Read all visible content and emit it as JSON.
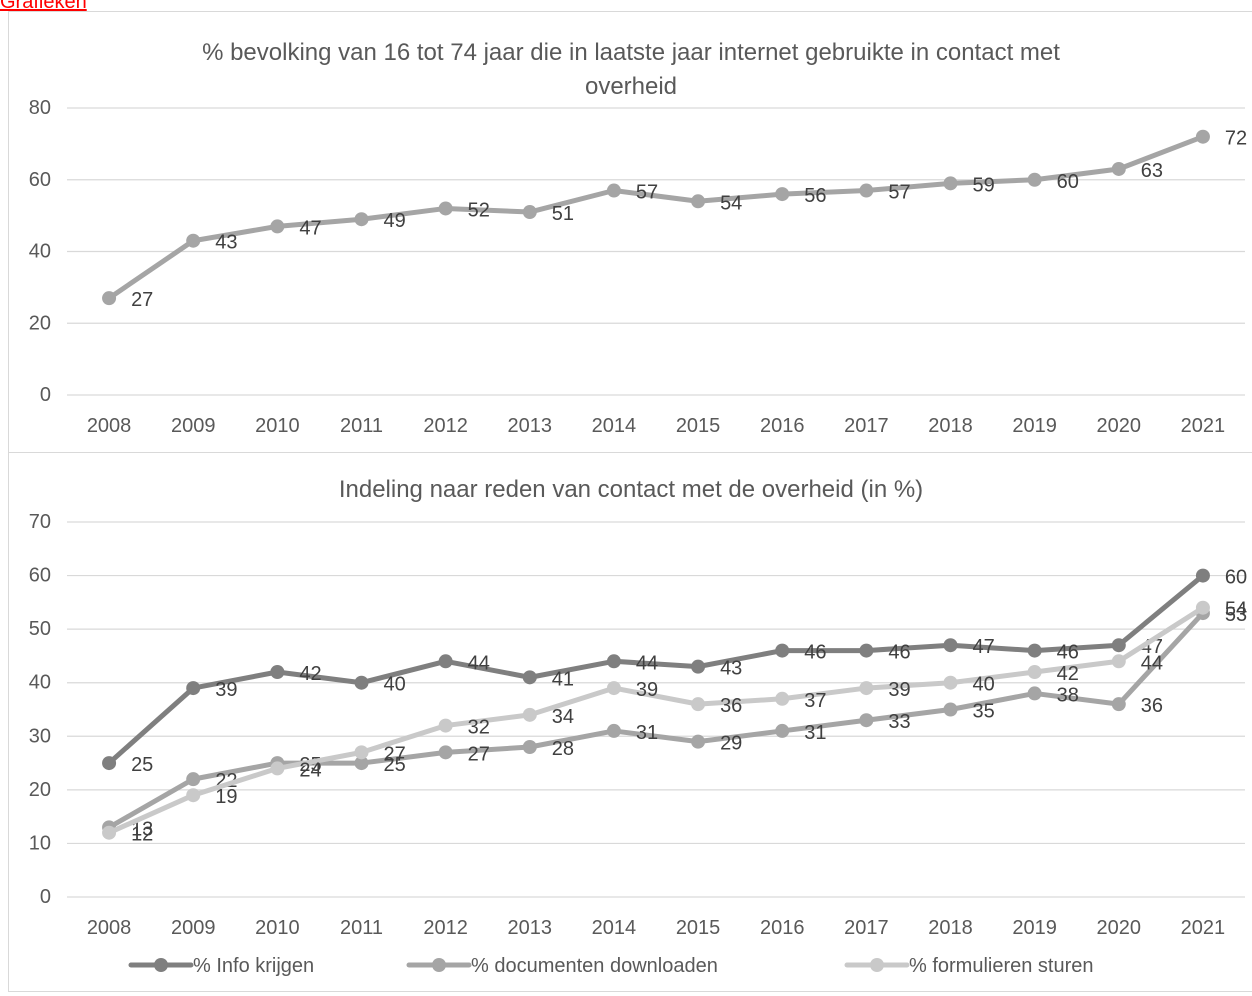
{
  "header": {
    "link_text": "Grafieken"
  },
  "colors": {
    "grid": "#d9d9d9",
    "axis_text": "#595959",
    "series_dark": "#7f7f7f",
    "series_mid": "#a5a5a5",
    "series_light": "#c9c9c9",
    "link": "#ff0000"
  },
  "chart_data": [
    {
      "type": "line",
      "title": "% bevolking van 16 tot 74 jaar die in laatste jaar internet gebruikte in contact met overheid",
      "title_lines": [
        "% bevolking van 16 tot 74 jaar die in laatste jaar internet gebruikte in contact met",
        "overheid"
      ],
      "categories": [
        "2008",
        "2009",
        "2010",
        "2011",
        "2012",
        "2013",
        "2014",
        "2015",
        "2016",
        "2017",
        "2018",
        "2019",
        "2020",
        "2021"
      ],
      "y_ticks": [
        "0",
        "20",
        "40",
        "60",
        "80"
      ],
      "ylim": [
        0,
        80
      ],
      "grid": true,
      "legend": "none",
      "series": [
        {
          "values": [
            27,
            43,
            47,
            49,
            52,
            51,
            57,
            54,
            56,
            57,
            59,
            60,
            63,
            72
          ],
          "labels": [
            "27",
            "43",
            "47",
            "49",
            "52",
            "51",
            "57",
            "54",
            "56",
            "57",
            "59",
            "60",
            "63",
            "72"
          ],
          "color": "#a5a5a5"
        }
      ]
    },
    {
      "type": "line",
      "title": "Indeling naar reden van contact met de overheid (in %)",
      "title_lines": [
        "Indeling naar reden van contact met de overheid (in %)"
      ],
      "categories": [
        "2008",
        "2009",
        "2010",
        "2011",
        "2012",
        "2013",
        "2014",
        "2015",
        "2016",
        "2017",
        "2018",
        "2019",
        "2020",
        "2021"
      ],
      "y_ticks": [
        "0",
        "10",
        "20",
        "30",
        "40",
        "50",
        "60",
        "70"
      ],
      "ylim": [
        0,
        70
      ],
      "grid": true,
      "legend": "bottom",
      "series": [
        {
          "name": "% Info krijgen",
          "color": "#7f7f7f",
          "values": [
            25,
            39,
            42,
            40,
            44,
            41,
            44,
            43,
            46,
            46,
            47,
            46,
            47,
            60
          ],
          "labels": [
            "25",
            "39",
            "42",
            "40",
            "44",
            "41",
            "44",
            "43",
            "46",
            "46",
            "47",
            "46",
            "47",
            "60"
          ]
        },
        {
          "name": "% documenten downloaden",
          "color": "#a5a5a5",
          "values": [
            13,
            22,
            25,
            25,
            27,
            28,
            31,
            29,
            31,
            33,
            35,
            38,
            36,
            53
          ],
          "labels": [
            "13",
            "22",
            "25",
            "25",
            "27",
            "28",
            "31",
            "29",
            "31",
            "33",
            "35",
            "38",
            "36",
            "53"
          ]
        },
        {
          "name": "% formulieren sturen",
          "color": "#c9c9c9",
          "values": [
            12,
            19,
            24,
            27,
            32,
            34,
            39,
            36,
            37,
            39,
            40,
            42,
            44,
            54
          ],
          "labels": [
            "12",
            "19",
            "24",
            "27",
            "32",
            "34",
            "39",
            "36",
            "37",
            "39",
            "40",
            "42",
            "44",
            "54"
          ]
        }
      ]
    }
  ]
}
